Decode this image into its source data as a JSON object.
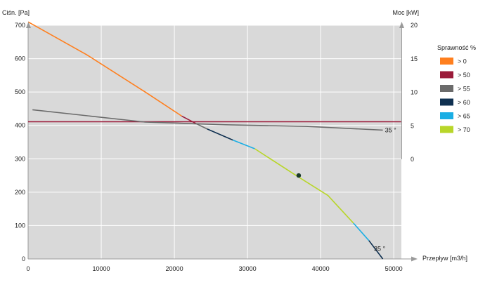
{
  "chart_data": {
    "type": "line",
    "left_axis": {
      "label": "Ciśn. [Pa]",
      "min": 0,
      "max": 700,
      "ticks": [
        0,
        100,
        200,
        300,
        400,
        500,
        600,
        700
      ]
    },
    "right_axis": {
      "label": "Moc [kW]",
      "min": 0,
      "max": 20,
      "ticks": [
        0,
        5,
        10,
        15,
        20
      ]
    },
    "x_axis": {
      "label": "Przepływ [m3/h]",
      "min": 0,
      "max": 50000,
      "ticks": [
        0,
        10000,
        20000,
        30000,
        40000,
        50000
      ]
    },
    "grid": true,
    "legend": {
      "title": "Sprawność %",
      "placement": "right",
      "items": [
        {
          "label": "> 0",
          "color": "#ff7f1e"
        },
        {
          "label": "> 50",
          "color": "#9b1b3a"
        },
        {
          "label": "> 55",
          "color": "#6b6b6b"
        },
        {
          "label": "> 60",
          "color": "#0f3050"
        },
        {
          "label": "> 65",
          "color": "#1aaee4"
        },
        {
          "label": "> 70",
          "color": "#b8d629"
        }
      ]
    },
    "series": [
      {
        "axis": "left",
        "segments": [
          {
            "color": "#ff7f1e",
            "points": [
              [
                0,
                710
              ],
              [
                8000,
                612
              ],
              [
                16000,
                500
              ],
              [
                21000,
                428
              ]
            ]
          },
          {
            "color": "#9b1b3a",
            "points": [
              [
                21000,
                428
              ],
              [
                23000,
                405
              ]
            ]
          },
          {
            "color": "#6b6b6b",
            "points": [
              [
                23000,
                405
              ],
              [
                24500,
                389
              ]
            ]
          },
          {
            "color": "#0f3050",
            "points": [
              [
                24500,
                389
              ],
              [
                28000,
                356
              ]
            ]
          },
          {
            "color": "#1aaee4",
            "points": [
              [
                28000,
                356
              ],
              [
                31000,
                330
              ]
            ]
          },
          {
            "color": "#b8d629",
            "points": [
              [
                31000,
                330
              ],
              [
                36500,
                252
              ],
              [
                41000,
                190
              ],
              [
                44500,
                107
              ]
            ]
          },
          {
            "color": "#1aaee4",
            "points": [
              [
                44500,
                107
              ],
              [
                46600,
                55
              ]
            ]
          },
          {
            "color": "#0f3050",
            "points": [
              [
                46600,
                55
              ],
              [
                48500,
                0
              ]
            ]
          }
        ]
      },
      {
        "axis": "left",
        "segments": [
          {
            "color": "#9b1b3a",
            "points": [
              [
                0,
                411
              ],
              [
                51000,
                411
              ]
            ]
          }
        ]
      },
      {
        "axis": "left",
        "segments": [
          {
            "color": "#6b6b6b",
            "points": [
              [
                600,
                447
              ],
              [
                16000,
                410
              ],
              [
                27000,
                402
              ],
              [
                38000,
                397
              ],
              [
                48500,
                386
              ]
            ]
          }
        ]
      }
    ],
    "operating_point": {
      "x": 37000,
      "y": 250
    },
    "annotations": [
      {
        "text": "35 °",
        "x": 48500,
        "y": 386
      },
      {
        "text": "35 °",
        "x": 47000,
        "y": 30
      }
    ]
  }
}
